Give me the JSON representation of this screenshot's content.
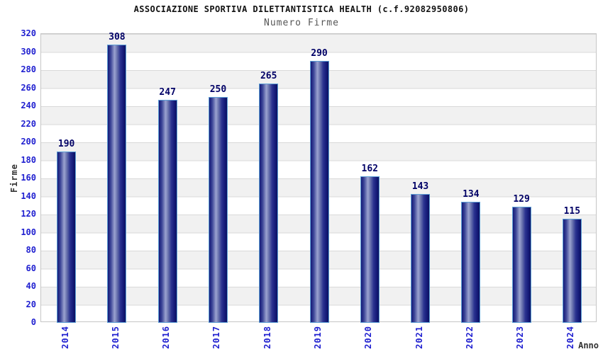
{
  "header": {
    "title": "ASSOCIAZIONE SPORTIVA DILETTANTISTICA HEALTH (c.f.92082950806)",
    "subtitle": "Numero Firme"
  },
  "chart_data": {
    "type": "bar",
    "title": "Numero Firme",
    "categories": [
      "2014",
      "2015",
      "2016",
      "2017",
      "2018",
      "2019",
      "2020",
      "2021",
      "2022",
      "2023",
      "2024"
    ],
    "values": [
      190,
      308,
      247,
      250,
      265,
      290,
      162,
      143,
      134,
      129,
      115
    ],
    "xlabel": "Anno",
    "ylabel": "Firme",
    "ylim": [
      0,
      320
    ],
    "ytick_step": 20,
    "yticks": [
      0,
      20,
      40,
      60,
      80,
      100,
      120,
      140,
      160,
      180,
      200,
      220,
      240,
      260,
      280,
      300,
      320
    ],
    "grid": "horizontal alternating bands, gray band at top",
    "legend": "none",
    "colors": {
      "axis_tick_labels": "#2020d0",
      "value_labels": "#000066",
      "bar_border": "#5ea0d6",
      "bar_dark": "#141a78",
      "bar_light": "#9ba3d0",
      "bar_darkest": "#0d1260",
      "band_fill": "#f1f1f1",
      "band_alt_fill": "#ffffff",
      "gridline": "#d9d9d9",
      "plot_border": "#c6c6c6",
      "title_color": "#111111",
      "subtitle_color": "#555555",
      "axis_title_color": "#333333"
    }
  }
}
